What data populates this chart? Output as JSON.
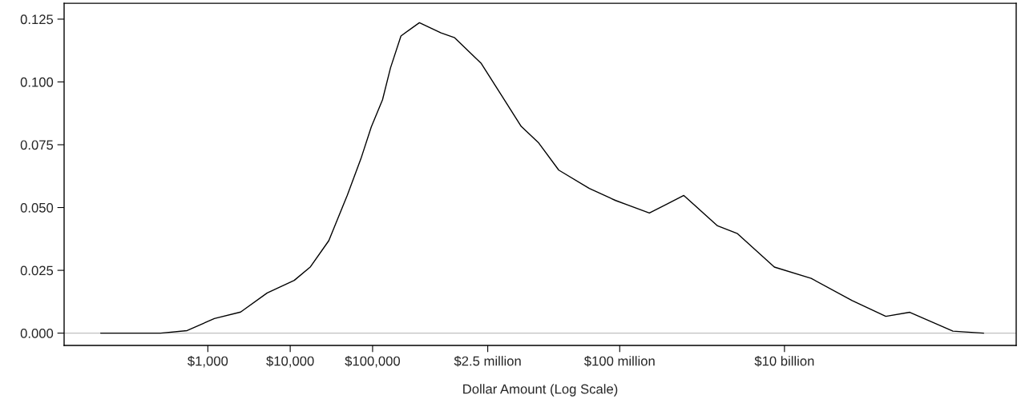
{
  "chart_data": {
    "type": "line",
    "xlabel": "Dollar Amount (Log Scale)",
    "log": "x",
    "grid": false,
    "marker": "none",
    "line_style": "solid",
    "x": [
      50,
      267,
      560,
      1200,
      2500,
      5250,
      11200,
      17600,
      29400,
      49300,
      72100,
      96400,
      132000,
      165000,
      221000,
      370000,
      677000,
      991000,
      2070000,
      3800000,
      6370000,
      10400000,
      18200000,
      42700000,
      89300000,
      229000000,
      600000000,
      1540000000,
      2690000000,
      7540000000,
      21100000000,
      66200000000,
      170000000000,
      332000000000,
      1110000000000,
      2610000000000
    ],
    "series": [
      {
        "color": "#000000",
        "values": [
          0,
          0,
          0.001,
          0.0058,
          0.0084,
          0.016,
          0.021,
          0.0264,
          0.0368,
          0.0549,
          0.0694,
          0.0821,
          0.0929,
          0.1056,
          0.1183,
          0.1236,
          0.1195,
          0.1176,
          0.1075,
          0.0939,
          0.0823,
          0.0757,
          0.0649,
          0.0576,
          0.0528,
          0.0478,
          0.0548,
          0.0427,
          0.0396,
          0.0263,
          0.0218,
          0.013,
          0.0067,
          0.0083,
          0.0008,
          0
        ]
      }
    ],
    "xlim": [
      18,
      6500000000000
    ],
    "ylim": [
      -0.0049,
      0.1313
    ],
    "xticks": [
      {
        "value": 1000,
        "label": "$1,000"
      },
      {
        "value": 10000,
        "label": "$10,000"
      },
      {
        "value": 100000,
        "label": "$100,000"
      },
      {
        "value": 2500000,
        "label": "$2.5 million"
      },
      {
        "value": 100000000,
        "label": "$100 million"
      },
      {
        "value": 10000000000,
        "label": "$10 billion"
      }
    ],
    "yticks": [
      {
        "value": 0,
        "label": "0.000"
      },
      {
        "value": 0.025,
        "label": "0.025"
      },
      {
        "value": 0.05,
        "label": "0.050"
      },
      {
        "value": 0.075,
        "label": "0.075"
      },
      {
        "value": 0.1,
        "label": "0.100"
      },
      {
        "value": 0.125,
        "label": "0.125"
      }
    ],
    "ref_lines": [
      {
        "axis": "y",
        "value": 0,
        "color": "#c0c0c0"
      }
    ]
  }
}
